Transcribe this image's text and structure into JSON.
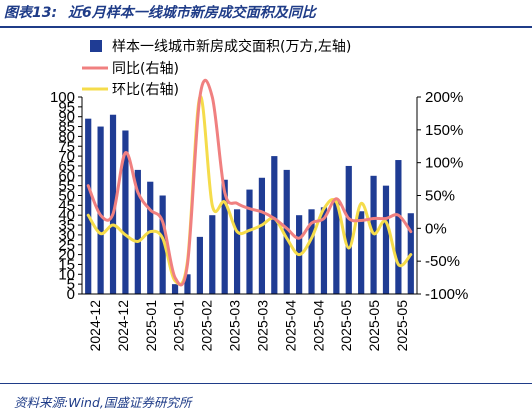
{
  "header": {
    "figure_label": "图表13:",
    "title_text": "近6月样本一线城市新房成交面积及同比"
  },
  "footer": {
    "source": "资料来源:Wind,国盛证券研究所"
  },
  "colors": {
    "bar": "#1f3c94",
    "yoy": "#f08080",
    "mom": "#f5dc4b",
    "brand": "#1f3c88"
  },
  "chart_data": {
    "type": "bar",
    "title": "",
    "legend_placement": "top",
    "grid": false,
    "x_tick_labels": [
      "2024-12",
      "2024-12",
      "2025-01",
      "2025-01",
      "2025-02",
      "2025-03",
      "2025-03",
      "2025-04",
      "2025-04",
      "2025-05",
      "2025-05",
      "2025-05"
    ],
    "y_left": {
      "ticks": [
        "0",
        "5",
        "10",
        "15",
        "20",
        "25",
        "30",
        "35",
        "40",
        "45",
        "50",
        "55",
        "60",
        "65",
        "70",
        "75",
        "80",
        "85",
        "90",
        "95",
        "100"
      ],
      "ylim": [
        0,
        100
      ]
    },
    "y_right": {
      "ticks": [
        "-100%",
        "-50%",
        "0%",
        "50%",
        "100%",
        "150%",
        "200%"
      ],
      "ylim": [
        -100,
        200
      ]
    },
    "series": [
      {
        "name": "样本一线城市新房成交面积(万方,左轴)",
        "axis": "left",
        "kind": "bar",
        "values": [
          89,
          85,
          91,
          83,
          63,
          57,
          50,
          5,
          10,
          29,
          40,
          58,
          43,
          53,
          59,
          70,
          63,
          40,
          43,
          44,
          47,
          65,
          42,
          60,
          55,
          68,
          41
        ]
      },
      {
        "name": "同比(右轴)",
        "axis": "right",
        "kind": "line",
        "values": [
          65,
          20,
          22,
          115,
          55,
          28,
          10,
          -75,
          -55,
          200,
          200,
          55,
          38,
          30,
          25,
          15,
          0,
          -15,
          8,
          15,
          45,
          15,
          12,
          15,
          15,
          20,
          -5
        ]
      },
      {
        "name": "环比(右轴)",
        "axis": "right",
        "kind": "line",
        "values": [
          20,
          -8,
          5,
          -10,
          -20,
          -5,
          -15,
          -80,
          -50,
          200,
          35,
          40,
          -5,
          -3,
          5,
          15,
          -15,
          -40,
          -15,
          30,
          40,
          -30,
          38,
          -8,
          10,
          -55,
          -40
        ]
      }
    ]
  }
}
